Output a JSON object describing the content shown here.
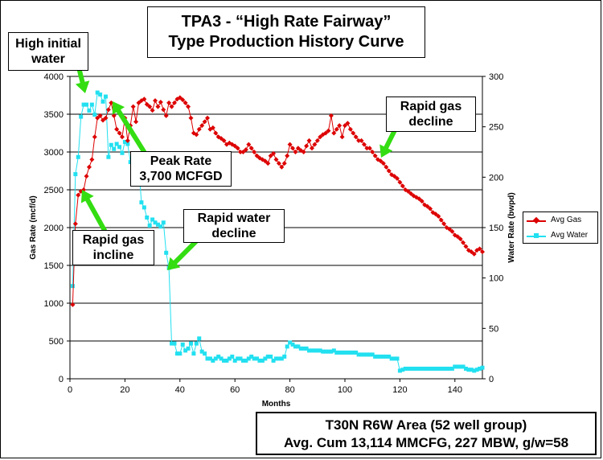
{
  "title": {
    "line1": "TPA3 - “High Rate Fairway”",
    "line2": "Type Production History Curve"
  },
  "callouts": {
    "high_initial_water": [
      "High initial",
      "water"
    ],
    "peak_rate": [
      "Peak Rate",
      "3,700 MCFGD"
    ],
    "rapid_gas_decline": [
      "Rapid gas",
      "decline"
    ],
    "rapid_water_decline": [
      "Rapid water",
      "decline"
    ],
    "rapid_gas_incline": [
      "Rapid gas",
      "incline"
    ]
  },
  "summary": {
    "line1": "T30N R6W Area  (52 well group)",
    "line2": "Avg. Cum 13,114 MMCFG,  227 MBW,  g/w=58"
  },
  "colors": {
    "gas": "#dd0000",
    "water": "#22e0f0",
    "arrow": "#33dd11",
    "gridline": "#000000"
  },
  "chart_data": {
    "type": "line",
    "xlabel": "Months",
    "ylabel": "Gas Rate (mcf/d)",
    "y2label": "Water Rate (bwpd)",
    "xlim": [
      0,
      150
    ],
    "ylim": [
      0,
      4000
    ],
    "y2lim": [
      0,
      300
    ],
    "x_ticks": [
      "0",
      "20",
      "40",
      "60",
      "80",
      "100",
      "120",
      "140"
    ],
    "y_ticks": [
      "0",
      "500",
      "1000",
      "1500",
      "2000",
      "2500",
      "3000",
      "3500",
      "4000"
    ],
    "y2_ticks": [
      "0",
      "50",
      "100",
      "150",
      "200",
      "250",
      "300"
    ],
    "grid": "horizontal",
    "legend": "right",
    "series": [
      {
        "name": "Avg Gas",
        "axis": "left",
        "marker": "diamond",
        "x": [
          1,
          2,
          3,
          4,
          5,
          6,
          7,
          8,
          9,
          10,
          11,
          12,
          13,
          14,
          15,
          16,
          17,
          18,
          19,
          20,
          21,
          22,
          23,
          24,
          25,
          26,
          27,
          28,
          29,
          30,
          31,
          32,
          33,
          34,
          35,
          36,
          37,
          38,
          39,
          40,
          41,
          42,
          43,
          44,
          45,
          46,
          47,
          48,
          49,
          50,
          51,
          52,
          53,
          54,
          55,
          56,
          57,
          58,
          59,
          60,
          61,
          62,
          63,
          64,
          65,
          66,
          67,
          68,
          69,
          70,
          71,
          72,
          73,
          74,
          75,
          76,
          77,
          78,
          79,
          80,
          81,
          82,
          83,
          84,
          85,
          86,
          87,
          88,
          89,
          90,
          91,
          92,
          93,
          94,
          95,
          96,
          97,
          98,
          99,
          100,
          101,
          102,
          103,
          104,
          105,
          106,
          107,
          108,
          109,
          110,
          111,
          112,
          113,
          114,
          115,
          116,
          117,
          118,
          119,
          120,
          121,
          122,
          123,
          124,
          125,
          126,
          127,
          128,
          129,
          130,
          131,
          132,
          133,
          134,
          135,
          136,
          137,
          138,
          139,
          140,
          141,
          142,
          143,
          144,
          145,
          146,
          147,
          148,
          149,
          150
        ],
        "values": [
          980,
          2050,
          2430,
          2480,
          2500,
          2680,
          2800,
          2900,
          3200,
          3450,
          3480,
          3420,
          3450,
          3560,
          3650,
          3480,
          3300,
          3250,
          3200,
          3450,
          3150,
          3350,
          3600,
          3400,
          3650,
          3680,
          3700,
          3630,
          3600,
          3550,
          3680,
          3600,
          3660,
          3560,
          3480,
          3650,
          3600,
          3650,
          3700,
          3720,
          3690,
          3650,
          3600,
          3450,
          3250,
          3230,
          3300,
          3350,
          3400,
          3450,
          3300,
          3320,
          3250,
          3200,
          3180,
          3150,
          3100,
          3120,
          3100,
          3080,
          3050,
          3000,
          3000,
          3030,
          3100,
          3050,
          3000,
          2950,
          2920,
          2900,
          2880,
          2850,
          2950,
          2980,
          2900,
          2850,
          2800,
          2850,
          2950,
          3100,
          3050,
          3000,
          3050,
          3020,
          3000,
          3080,
          3150,
          3050,
          3100,
          3150,
          3200,
          3230,
          3250,
          3280,
          3480,
          3250,
          3300,
          3350,
          3200,
          3350,
          3380,
          3300,
          3250,
          3200,
          3150,
          3150,
          3100,
          3050,
          3050,
          3000,
          2950,
          2900,
          2880,
          2850,
          2800,
          2750,
          2700,
          2680,
          2650,
          2600,
          2550,
          2500,
          2480,
          2450,
          2420,
          2400,
          2380,
          2350,
          2300,
          2280,
          2250,
          2200,
          2180,
          2150,
          2100,
          2050,
          2000,
          1980,
          1950,
          1900,
          1880,
          1850,
          1800,
          1750,
          1700,
          1680,
          1650,
          1700,
          1720,
          1680
        ]
      },
      {
        "name": "Avg Water",
        "axis": "right",
        "marker": "square",
        "x": [
          1,
          2,
          3,
          4,
          5,
          6,
          7,
          8,
          9,
          10,
          11,
          12,
          13,
          14,
          15,
          16,
          17,
          18,
          19,
          20,
          21,
          22,
          23,
          24,
          25,
          26,
          27,
          28,
          29,
          30,
          31,
          32,
          33,
          34,
          35,
          36,
          37,
          38,
          39,
          40,
          41,
          42,
          43,
          44,
          45,
          46,
          47,
          48,
          49,
          50,
          51,
          52,
          53,
          54,
          55,
          56,
          57,
          58,
          59,
          60,
          61,
          62,
          63,
          64,
          65,
          66,
          67,
          68,
          69,
          70,
          71,
          72,
          73,
          74,
          75,
          76,
          77,
          78,
          79,
          80,
          81,
          82,
          83,
          84,
          85,
          86,
          87,
          88,
          89,
          90,
          91,
          92,
          93,
          94,
          95,
          96,
          97,
          98,
          99,
          100,
          101,
          102,
          103,
          104,
          105,
          106,
          107,
          108,
          109,
          110,
          111,
          112,
          113,
          114,
          115,
          116,
          117,
          118,
          119,
          120,
          121,
          122,
          123,
          124,
          125,
          126,
          127,
          128,
          129,
          130,
          131,
          132,
          133,
          134,
          135,
          136,
          137,
          138,
          139,
          140,
          141,
          142,
          143,
          144,
          145,
          146,
          147,
          148,
          149,
          150
        ],
        "values": [
          92,
          203,
          220,
          260,
          272,
          272,
          266,
          272,
          262,
          284,
          282,
          275,
          280,
          220,
          232,
          228,
          233,
          230,
          224,
          235,
          233,
          215,
          200,
          213,
          212,
          175,
          170,
          160,
          152,
          158,
          155,
          153,
          151,
          155,
          125,
          110,
          35,
          35,
          25,
          25,
          34,
          28,
          30,
          35,
          25,
          35,
          40,
          27,
          25,
          20,
          20,
          18,
          20,
          22,
          20,
          18,
          18,
          20,
          22,
          18,
          20,
          20,
          18,
          18,
          20,
          22,
          20,
          20,
          18,
          18,
          20,
          22,
          22,
          18,
          20,
          20,
          20,
          22,
          32,
          36,
          34,
          32,
          32,
          30,
          30,
          30,
          28,
          28,
          28,
          28,
          28,
          27,
          27,
          27,
          27,
          28,
          26,
          26,
          26,
          26,
          26,
          26,
          26,
          26,
          24,
          24,
          24,
          24,
          24,
          24,
          22,
          22,
          22,
          22,
          22,
          22,
          20,
          20,
          20,
          8,
          9,
          10,
          10,
          10,
          10,
          10,
          10,
          10,
          10,
          10,
          10,
          10,
          10,
          10,
          10,
          10,
          10,
          10,
          10,
          12,
          12,
          12,
          12,
          10,
          9,
          9,
          8,
          9,
          10,
          11
        ]
      }
    ]
  }
}
